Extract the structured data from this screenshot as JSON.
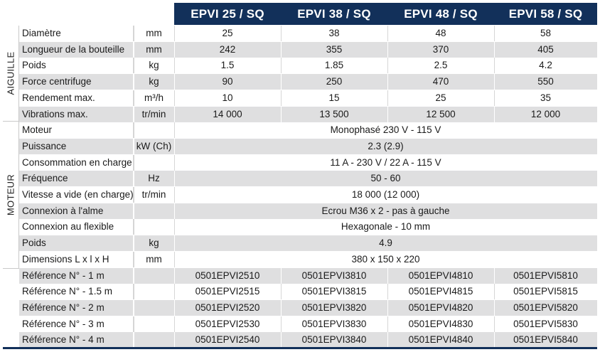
{
  "columns": [
    "EPVI 25 / SQ",
    "EPVI 38 / SQ",
    "EPVI 48 / SQ",
    "EPVI 58 / SQ"
  ],
  "groups": {
    "aiguille": "AIGUILLE",
    "moteur": "MOTEUR"
  },
  "aiguille_rows": [
    {
      "label": "Diamètre",
      "unit": "mm",
      "values": [
        "25",
        "38",
        "48",
        "58"
      ]
    },
    {
      "label": "Longueur de la bouteille",
      "unit": "mm",
      "values": [
        "242",
        "355",
        "370",
        "405"
      ]
    },
    {
      "label": "Poids",
      "unit": "kg",
      "values": [
        "1.5",
        "1.85",
        "2.5",
        "4.2"
      ]
    },
    {
      "label": "Force centrifuge",
      "unit": "kg",
      "values": [
        "90",
        "250",
        "470",
        "550"
      ]
    },
    {
      "label": "Rendement max.",
      "unit": "m³/h",
      "values": [
        "10",
        "15",
        "25",
        "35"
      ]
    },
    {
      "label": "Vibrations max.",
      "unit": "tr/min",
      "values": [
        "14 000",
        "13 500",
        "12 500",
        "12 000"
      ]
    }
  ],
  "moteur_rows": [
    {
      "label": "Moteur",
      "unit": "",
      "value": "Monophasé 230 V - 115 V"
    },
    {
      "label": "Puissance",
      "unit": "kW (Ch)",
      "value": "2.3 (2.9)"
    },
    {
      "label": "Consommation en charge",
      "unit": "",
      "value": "11 A - 230 V   /   22 A - 115 V"
    },
    {
      "label": "Fréquence",
      "unit": "Hz",
      "value": "50 - 60"
    },
    {
      "label": "Vitesse a vide (en charge)",
      "unit": "tr/min",
      "value": "18 000 (12 000)"
    },
    {
      "label": "Connexion à l'alme",
      "unit": "",
      "value": "Ecrou M36 x 2 - pas à gauche"
    },
    {
      "label": "Connexion au flexible",
      "unit": "",
      "value": "Hexagonale - 10 mm"
    },
    {
      "label": "Poids",
      "unit": "kg",
      "value": "4.9"
    },
    {
      "label": "Dimensions L x l x H",
      "unit": "mm",
      "value": "380 x 150 x 220"
    }
  ],
  "reference_rows": [
    {
      "label": "Référence N° - 1 m",
      "values": [
        "0501EPVI2510",
        "0501EPVI3810",
        "0501EPVI4810",
        "0501EPVI5810"
      ]
    },
    {
      "label": "Référence N° - 1.5 m",
      "values": [
        "0501EPVI2515",
        "0501EPVI3815",
        "0501EPVI4815",
        "0501EPVI5815"
      ]
    },
    {
      "label": "Référence N° - 2 m",
      "values": [
        "0501EPVI2520",
        "0501EPVI3820",
        "0501EPVI4820",
        "0501EPVI5820"
      ]
    },
    {
      "label": "Référence N° - 3 m",
      "values": [
        "0501EPVI2530",
        "0501EPVI3830",
        "0501EPVI4830",
        "0501EPVI5830"
      ]
    },
    {
      "label": "Référence N° - 4 m",
      "values": [
        "0501EPVI2540",
        "0501EPVI3840",
        "0501EPVI4840",
        "0501EPVI5840"
      ]
    }
  ],
  "colors": {
    "header_bg": "#12305a",
    "header_text": "#ffffff",
    "row_shade": "#dfdfe0"
  }
}
